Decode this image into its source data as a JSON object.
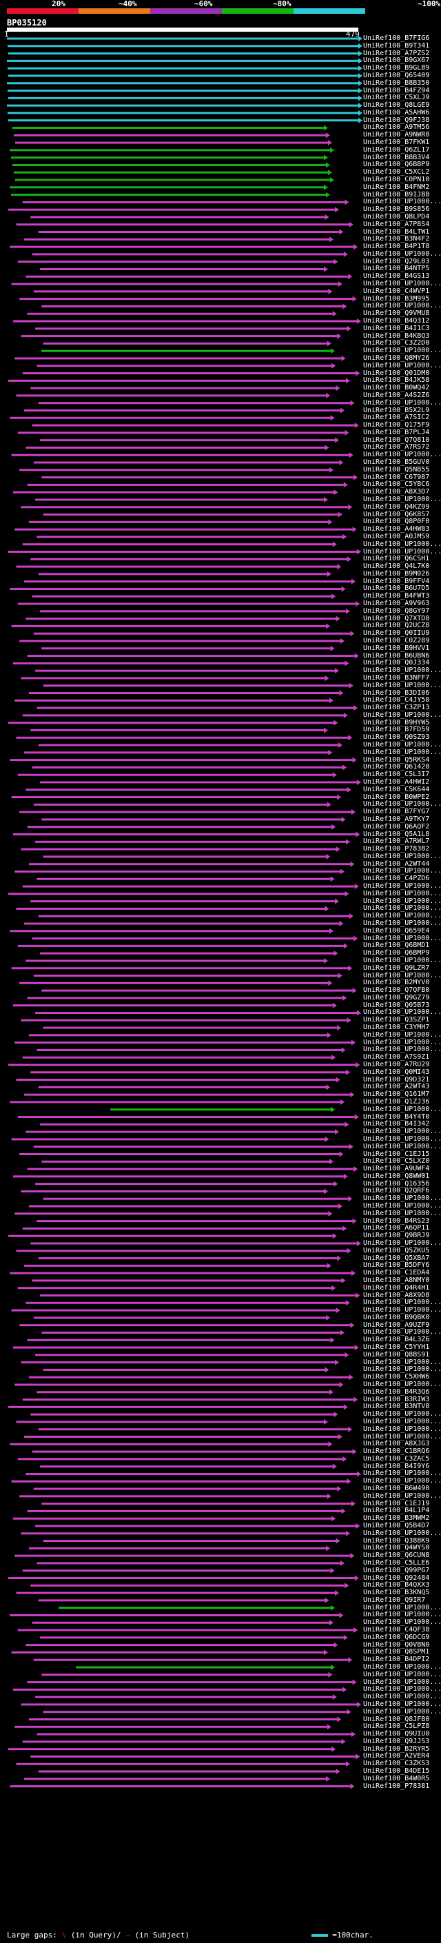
{
  "legend": {
    "ticks": [
      "20%",
      "~40%",
      "~60%",
      "~80%",
      "~100%"
    ],
    "colors": [
      "#e8102a",
      "#e8761a",
      "#9b30b6",
      "#14b414",
      "#2fc8d8"
    ]
  },
  "query": {
    "id": "BP035120",
    "start_label": "1",
    "end_label": "479"
  },
  "hit_colors": {
    "cyan": "#2fc8d8",
    "green": "#14b414",
    "magenta": "#cc40c8"
  },
  "hits": [
    {
      "id": "UniRef100_B7FIG6",
      "color": "cyan"
    },
    {
      "id": "UniRef100_B9T341",
      "color": "cyan"
    },
    {
      "id": "UniRef100_A7PZS2",
      "color": "cyan"
    },
    {
      "id": "UniRef100_B9GX67",
      "color": "cyan"
    },
    {
      "id": "UniRef100_B9GL89",
      "color": "cyan"
    },
    {
      "id": "UniRef100_Q65409",
      "color": "cyan"
    },
    {
      "id": "UniRef100_B8B350",
      "color": "cyan"
    },
    {
      "id": "UniRef100_B4FZ94",
      "color": "cyan"
    },
    {
      "id": "UniRef100_C5XLJ9",
      "color": "cyan"
    },
    {
      "id": "UniRef100_Q8LGE9",
      "color": "cyan"
    },
    {
      "id": "UniRef100_A5AHW6",
      "color": "cyan"
    },
    {
      "id": "UniRef100_Q9FJ38",
      "color": "cyan"
    },
    {
      "id": "UniRef100_A9TM56",
      "color": "green"
    },
    {
      "id": "UniRef100_A9NWR8",
      "color": "magenta"
    },
    {
      "id": "UniRef100_B7FKW1",
      "color": "magenta"
    },
    {
      "id": "UniRef100_Q6ZL17",
      "color": "green"
    },
    {
      "id": "UniRef100_B8B3V4",
      "color": "green"
    },
    {
      "id": "UniRef100_Q6BBP9",
      "color": "green"
    },
    {
      "id": "UniRef100_C5XCL2",
      "color": "green"
    },
    {
      "id": "UniRef100_C0PN10",
      "color": "green"
    },
    {
      "id": "UniRef100_B4FNM2",
      "color": "green"
    },
    {
      "id": "UniRef100_B9IJB8",
      "color": "green"
    },
    {
      "id": "UniRef100_UP1000...",
      "color": "magenta"
    },
    {
      "id": "UniRef100_B9S856",
      "color": "magenta"
    },
    {
      "id": "UniRef100_Q8LPD4",
      "color": "magenta"
    },
    {
      "id": "UniRef100_A7P8S4",
      "color": "magenta"
    },
    {
      "id": "UniRef100_B4LTW1",
      "color": "magenta"
    },
    {
      "id": "UniRef100_B3N4F2",
      "color": "magenta"
    },
    {
      "id": "UniRef100_B4P1T8",
      "color": "magenta"
    },
    {
      "id": "UniRef100_UP1000...",
      "color": "magenta"
    },
    {
      "id": "UniRef100_Q29L03",
      "color": "magenta"
    },
    {
      "id": "UniRef100_B4NTP5",
      "color": "magenta"
    },
    {
      "id": "UniRef100_B4GS13",
      "color": "magenta"
    },
    {
      "id": "UniRef100_UP1000...",
      "color": "magenta"
    },
    {
      "id": "UniRef100_C4WVP1",
      "color": "magenta"
    },
    {
      "id": "UniRef100_B3M995",
      "color": "magenta"
    },
    {
      "id": "UniRef100_UP1000...",
      "color": "magenta"
    },
    {
      "id": "UniRef100_Q9VMU8",
      "color": "magenta"
    },
    {
      "id": "UniRef100_B4Q312",
      "color": "magenta"
    },
    {
      "id": "UniRef100_B4I1C3",
      "color": "magenta"
    },
    {
      "id": "UniRef100_B4KBQ3",
      "color": "magenta"
    },
    {
      "id": "UniRef100_C3Z2D0",
      "color": "magenta"
    },
    {
      "id": "UniRef100_UP1000...",
      "color": "green"
    },
    {
      "id": "UniRef100_Q8MY26",
      "color": "magenta"
    },
    {
      "id": "UniRef100_UP1000...",
      "color": "magenta"
    },
    {
      "id": "UniRef100_Q01DM0",
      "color": "magenta"
    },
    {
      "id": "UniRef100_B4JK58",
      "color": "magenta"
    },
    {
      "id": "UniRef100_B0WQ42",
      "color": "magenta"
    },
    {
      "id": "UniRef100_A4S2Z6",
      "color": "magenta"
    },
    {
      "id": "UniRef100_UP1000...",
      "color": "magenta"
    },
    {
      "id": "UniRef100_B5X2L9",
      "color": "magenta"
    },
    {
      "id": "UniRef100_A7SIC2",
      "color": "magenta"
    },
    {
      "id": "UniRef100_Q175F9",
      "color": "magenta"
    },
    {
      "id": "UniRef100_B7PLJ4",
      "color": "magenta"
    },
    {
      "id": "UniRef100_Q7Q810",
      "color": "magenta"
    },
    {
      "id": "UniRef100_A7RS72",
      "color": "magenta"
    },
    {
      "id": "UniRef100_UP1000...",
      "color": "magenta"
    },
    {
      "id": "UniRef100_B5GUV0",
      "color": "magenta"
    },
    {
      "id": "UniRef100_Q5NB55",
      "color": "magenta"
    },
    {
      "id": "UniRef100_C6T987",
      "color": "magenta"
    },
    {
      "id": "UniRef100_C5YBC6",
      "color": "magenta"
    },
    {
      "id": "UniRef100_A8X3D7",
      "color": "magenta"
    },
    {
      "id": "UniRef100_UP1000...",
      "color": "magenta"
    },
    {
      "id": "UniRef100_Q4KZ99",
      "color": "magenta"
    },
    {
      "id": "UniRef100_Q6K8S7",
      "color": "magenta"
    },
    {
      "id": "UniRef100_Q8P0F0",
      "color": "magenta"
    },
    {
      "id": "UniRef100_A4HW83",
      "color": "magenta"
    },
    {
      "id": "UniRef100_A0JMS9",
      "color": "magenta"
    },
    {
      "id": "UniRef100_UP1000...",
      "color": "magenta"
    },
    {
      "id": "UniRef100_UP1000...",
      "color": "magenta"
    },
    {
      "id": "UniRef100_Q6CSH1",
      "color": "magenta"
    },
    {
      "id": "UniRef100_Q4L7K0",
      "color": "magenta"
    },
    {
      "id": "UniRef100_B9M026",
      "color": "magenta"
    },
    {
      "id": "UniRef100_B9FFV4",
      "color": "magenta"
    },
    {
      "id": "UniRef100_B6U7D5",
      "color": "magenta"
    },
    {
      "id": "UniRef100_B4FWT3",
      "color": "magenta"
    },
    {
      "id": "UniRef100_A9V963",
      "color": "magenta"
    },
    {
      "id": "UniRef100_Q8GY97",
      "color": "magenta"
    },
    {
      "id": "UniRef100_Q7XTD8",
      "color": "magenta"
    },
    {
      "id": "UniRef100_Q2UCZ8",
      "color": "magenta"
    },
    {
      "id": "UniRef100_Q0IIU9",
      "color": "magenta"
    },
    {
      "id": "UniRef100_C0Z289",
      "color": "magenta"
    },
    {
      "id": "UniRef100_B9HVV1",
      "color": "magenta"
    },
    {
      "id": "UniRef100_B6UBN6",
      "color": "magenta"
    },
    {
      "id": "UniRef100_Q0J334",
      "color": "magenta"
    },
    {
      "id": "UniRef100_UP1000...",
      "color": "magenta"
    },
    {
      "id": "UniRef100_B3NFF7",
      "color": "magenta"
    },
    {
      "id": "UniRef100_UP1000...",
      "color": "magenta"
    },
    {
      "id": "UniRef100_B3DI06",
      "color": "magenta"
    },
    {
      "id": "UniRef100_C4JY50",
      "color": "magenta"
    },
    {
      "id": "UniRef100_C3ZP13",
      "color": "magenta"
    },
    {
      "id": "UniRef100_UP1000...",
      "color": "magenta"
    },
    {
      "id": "UniRef100_B9HYW5",
      "color": "magenta"
    },
    {
      "id": "UniRef100_B7FD59",
      "color": "magenta"
    },
    {
      "id": "UniRef100_Q0SZ93",
      "color": "magenta"
    },
    {
      "id": "UniRef100_UP1000...",
      "color": "magenta"
    },
    {
      "id": "UniRef100_UP1000...",
      "color": "magenta"
    },
    {
      "id": "UniRef100_Q5RKS4",
      "color": "magenta"
    },
    {
      "id": "UniRef100_Q61420",
      "color": "magenta"
    },
    {
      "id": "UniRef100_C5L3I7",
      "color": "magenta"
    },
    {
      "id": "UniRef100_A4HWI2",
      "color": "magenta"
    },
    {
      "id": "UniRef100_C5K644",
      "color": "magenta"
    },
    {
      "id": "UniRef100_B0WPE2",
      "color": "magenta"
    },
    {
      "id": "UniRef100_UP1000...",
      "color": "magenta"
    },
    {
      "id": "UniRef100_B7FYG7",
      "color": "magenta"
    },
    {
      "id": "UniRef100_A9TKY7",
      "color": "magenta"
    },
    {
      "id": "UniRef100_Q6AQF2",
      "color": "magenta"
    },
    {
      "id": "UniRef100_Q5A1L8",
      "color": "magenta"
    },
    {
      "id": "UniRef100_A7RWL7",
      "color": "magenta"
    },
    {
      "id": "UniRef100_P78382",
      "color": "magenta"
    },
    {
      "id": "UniRef100_UP1000...",
      "color": "magenta"
    },
    {
      "id": "UniRef100_A2WT44",
      "color": "magenta"
    },
    {
      "id": "UniRef100_UP1000...",
      "color": "magenta"
    },
    {
      "id": "UniRef100_C4PZD6",
      "color": "magenta"
    },
    {
      "id": "UniRef100_UP1000...",
      "color": "magenta"
    },
    {
      "id": "UniRef100_UP1000...",
      "color": "magenta"
    },
    {
      "id": "UniRef100_UP1000...",
      "color": "magenta"
    },
    {
      "id": "UniRef100_UP1000...",
      "color": "magenta"
    },
    {
      "id": "UniRef100_UP1000...",
      "color": "magenta"
    },
    {
      "id": "UniRef100_UP1000...",
      "color": "magenta"
    },
    {
      "id": "UniRef100_Q659E4",
      "color": "magenta"
    },
    {
      "id": "UniRef100_UP1000...",
      "color": "magenta"
    },
    {
      "id": "UniRef100_Q6BMD1",
      "color": "magenta"
    },
    {
      "id": "UniRef100_Q6BMP9",
      "color": "magenta"
    },
    {
      "id": "UniRef100_UP1000...",
      "color": "magenta"
    },
    {
      "id": "UniRef100_Q9LZR7",
      "color": "magenta"
    },
    {
      "id": "UniRef100_UP1000...",
      "color": "magenta"
    },
    {
      "id": "UniRef100_B2MYV0",
      "color": "magenta"
    },
    {
      "id": "UniRef100_Q7QFB0",
      "color": "magenta"
    },
    {
      "id": "UniRef100_Q9GZ79",
      "color": "magenta"
    },
    {
      "id": "UniRef100_Q05B73",
      "color": "magenta"
    },
    {
      "id": "UniRef100_UP1000...",
      "color": "magenta"
    },
    {
      "id": "UniRef100_Q3SZP1",
      "color": "magenta"
    },
    {
      "id": "UniRef100_C3YMH7",
      "color": "magenta"
    },
    {
      "id": "UniRef100_UP1000...",
      "color": "magenta"
    },
    {
      "id": "UniRef100_UP1000...",
      "color": "magenta"
    },
    {
      "id": "UniRef100_UP1000...",
      "color": "magenta"
    },
    {
      "id": "UniRef100_A7S9Z1",
      "color": "magenta"
    },
    {
      "id": "UniRef100_A7RU29",
      "color": "magenta"
    },
    {
      "id": "UniRef100_Q0MI43",
      "color": "magenta"
    },
    {
      "id": "UniRef100_Q9D321",
      "color": "magenta"
    },
    {
      "id": "UniRef100_A2WT43",
      "color": "magenta"
    },
    {
      "id": "UniRef100_Q161M7",
      "color": "magenta"
    },
    {
      "id": "UniRef100_Q1ZJ36",
      "color": "magenta"
    },
    {
      "id": "UniRef100_UP1000...",
      "color": "green"
    },
    {
      "id": "UniRef100_B4Y4T0",
      "color": "magenta"
    },
    {
      "id": "UniRef100_B4I342",
      "color": "magenta"
    },
    {
      "id": "UniRef100_UP1000...",
      "color": "magenta"
    },
    {
      "id": "UniRef100_UP1000...",
      "color": "magenta"
    },
    {
      "id": "UniRef100_UP1000...",
      "color": "magenta"
    },
    {
      "id": "UniRef100_C1EJ15",
      "color": "magenta"
    },
    {
      "id": "UniRef100_C5LXZ0",
      "color": "magenta"
    },
    {
      "id": "UniRef100_A9UWF4",
      "color": "magenta"
    },
    {
      "id": "UniRef100_Q8WW01",
      "color": "magenta"
    },
    {
      "id": "UniRef100_Q16356",
      "color": "magenta"
    },
    {
      "id": "UniRef100_Q2QRF6",
      "color": "magenta"
    },
    {
      "id": "UniRef100_UP1000...",
      "color": "magenta"
    },
    {
      "id": "UniRef100_UP1000...",
      "color": "magenta"
    },
    {
      "id": "UniRef100_UP1000...",
      "color": "magenta"
    },
    {
      "id": "UniRef100_B4RS23",
      "color": "magenta"
    },
    {
      "id": "UniRef100_A6QP11",
      "color": "magenta"
    },
    {
      "id": "UniRef100_Q9BRJ9",
      "color": "magenta"
    },
    {
      "id": "UniRef100_UP1000...",
      "color": "magenta"
    },
    {
      "id": "UniRef100_Q5ZKU5",
      "color": "magenta"
    },
    {
      "id": "UniRef100_Q5XBA7",
      "color": "magenta"
    },
    {
      "id": "UniRef100_B5DFY6",
      "color": "magenta"
    },
    {
      "id": "UniRef100_C1EDA4",
      "color": "magenta"
    },
    {
      "id": "UniRef100_A8NMY0",
      "color": "magenta"
    },
    {
      "id": "UniRef100_Q4R4H1",
      "color": "magenta"
    },
    {
      "id": "UniRef100_A8X9D8",
      "color": "magenta"
    },
    {
      "id": "UniRef100_UP1000...",
      "color": "magenta"
    },
    {
      "id": "UniRef100_UP1000...",
      "color": "magenta"
    },
    {
      "id": "UniRef100_B9QBK0",
      "color": "magenta"
    },
    {
      "id": "UniRef100_A9UZF9",
      "color": "magenta"
    },
    {
      "id": "UniRef100_UP1000...",
      "color": "magenta"
    },
    {
      "id": "UniRef100_B4L3Z6",
      "color": "magenta"
    },
    {
      "id": "UniRef100_C5YYH1",
      "color": "magenta"
    },
    {
      "id": "UniRef100_Q8BS91",
      "color": "magenta"
    },
    {
      "id": "UniRef100_UP1000...",
      "color": "magenta"
    },
    {
      "id": "UniRef100_UP1000...",
      "color": "magenta"
    },
    {
      "id": "UniRef100_C5XHW6",
      "color": "magenta"
    },
    {
      "id": "UniRef100_UP1000...",
      "color": "magenta"
    },
    {
      "id": "UniRef100_B4R3Q6",
      "color": "magenta"
    },
    {
      "id": "UniRef100_B3RIW3",
      "color": "magenta"
    },
    {
      "id": "UniRef100_B3NTV8",
      "color": "magenta"
    },
    {
      "id": "UniRef100_UP1000...",
      "color": "magenta"
    },
    {
      "id": "UniRef100_UP1000...",
      "color": "magenta"
    },
    {
      "id": "UniRef100_UP1000...",
      "color": "magenta"
    },
    {
      "id": "UniRef100_UP1000...",
      "color": "magenta"
    },
    {
      "id": "UniRef100_A8XJG3",
      "color": "magenta"
    },
    {
      "id": "UniRef100_C1BRQ6",
      "color": "magenta"
    },
    {
      "id": "UniRef100_C3ZAC5",
      "color": "magenta"
    },
    {
      "id": "UniRef100_B4I9Y6",
      "color": "magenta"
    },
    {
      "id": "UniRef100_UP1000...",
      "color": "magenta"
    },
    {
      "id": "UniRef100_UP1000...",
      "color": "magenta"
    },
    {
      "id": "UniRef100_B6W490",
      "color": "magenta"
    },
    {
      "id": "UniRef100_UP1000...",
      "color": "magenta"
    },
    {
      "id": "UniRef100_C1EJ19",
      "color": "magenta"
    },
    {
      "id": "UniRef100_B4L1P4",
      "color": "magenta"
    },
    {
      "id": "UniRef100_B3MWM2",
      "color": "magenta"
    },
    {
      "id": "UniRef100_Q5B4D7",
      "color": "magenta"
    },
    {
      "id": "UniRef100_UP1000...",
      "color": "magenta"
    },
    {
      "id": "UniRef100_Q388K9",
      "color": "magenta"
    },
    {
      "id": "UniRef100_Q4WYS0",
      "color": "magenta"
    },
    {
      "id": "UniRef100_Q6CUN8",
      "color": "magenta"
    },
    {
      "id": "UniRef100_C5LLE6",
      "color": "magenta"
    },
    {
      "id": "UniRef100_Q99PG7",
      "color": "magenta"
    },
    {
      "id": "UniRef100_Q92484",
      "color": "magenta"
    },
    {
      "id": "UniRef100_B4QXX3",
      "color": "magenta"
    },
    {
      "id": "UniRef100_B3KNQ5",
      "color": "magenta"
    },
    {
      "id": "UniRef100_Q9IR7",
      "color": "magenta"
    },
    {
      "id": "UniRef100_UP1000...",
      "color": "green"
    },
    {
      "id": "UniRef100_UP1000...",
      "color": "magenta"
    },
    {
      "id": "UniRef100_UP1000...",
      "color": "magenta"
    },
    {
      "id": "UniRef100_C4QF38",
      "color": "magenta"
    },
    {
      "id": "UniRef100_Q6DCG9",
      "color": "magenta"
    },
    {
      "id": "UniRef100_Q0VBN0",
      "color": "magenta"
    },
    {
      "id": "UniRef100_Q8SPM1",
      "color": "magenta"
    },
    {
      "id": "UniRef100_B4DPI2",
      "color": "magenta"
    },
    {
      "id": "UniRef100_UP1000...",
      "color": "green"
    },
    {
      "id": "UniRef100_UP1000...",
      "color": "magenta"
    },
    {
      "id": "UniRef100_UP1000...",
      "color": "magenta"
    },
    {
      "id": "UniRef100_UP1000...",
      "color": "magenta"
    },
    {
      "id": "UniRef100_UP1000...",
      "color": "magenta"
    },
    {
      "id": "UniRef100_UP1000...",
      "color": "magenta"
    },
    {
      "id": "UniRef100_UP1000...",
      "color": "magenta"
    },
    {
      "id": "UniRef100_Q8JFB0",
      "color": "magenta"
    },
    {
      "id": "UniRef100_C5LPZ8",
      "color": "magenta"
    },
    {
      "id": "UniRef100_Q9UIU0",
      "color": "magenta"
    },
    {
      "id": "UniRef100_Q9JJS3",
      "color": "magenta"
    },
    {
      "id": "UniRef100_B2RYR5",
      "color": "magenta"
    },
    {
      "id": "UniRef100_A2VER4",
      "color": "magenta"
    },
    {
      "id": "UniRef100_C3ZKS3",
      "color": "magenta"
    },
    {
      "id": "UniRef100_B4DE15",
      "color": "magenta"
    },
    {
      "id": "UniRef100_B4W0R5",
      "color": "magenta"
    },
    {
      "id": "UniRef100_P78381",
      "color": "magenta"
    }
  ],
  "footer": {
    "large_gaps_label": "Large gaps:",
    "query_gap_symbol": "\\",
    "query_gap_text": "(in Query)/",
    "subject_gap_symbol": "~",
    "subject_gap_text": "(in Subject)",
    "scale_text": "=100char."
  }
}
